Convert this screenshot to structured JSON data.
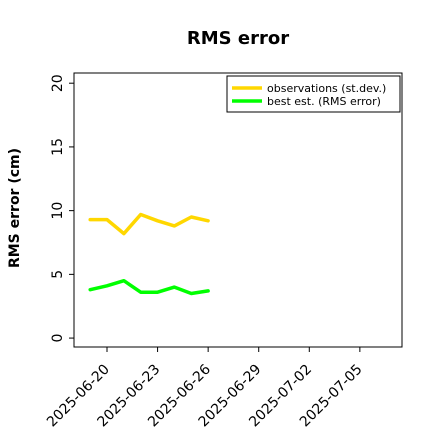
{
  "chart_data": {
    "type": "line",
    "title": "RMS error",
    "xlabel": "",
    "ylabel": "RMS error (cm)",
    "ylim": [
      -0.7,
      20.8
    ],
    "xlim": [
      "2025-06-18T01:00",
      "2025-07-07T12:00"
    ],
    "yticks": [
      0,
      5,
      10,
      15,
      20
    ],
    "xticks": [
      "2025-06-20",
      "2025-06-23",
      "2025-06-26",
      "2025-06-29",
      "2025-07-02",
      "2025-07-05"
    ],
    "xtick_colors": [
      "#000000",
      "#000000",
      "#228B22",
      "#000000",
      "#000000",
      "#000000"
    ],
    "legend_position": "top-right",
    "grid": false,
    "series": [
      {
        "name": "observations (st.dev.)",
        "color": "#FFD700",
        "x": [
          "2025-06-19",
          "2025-06-20",
          "2025-06-21",
          "2025-06-22",
          "2025-06-23",
          "2025-06-24",
          "2025-06-25",
          "2025-06-26"
        ],
        "values": [
          9.3,
          9.3,
          8.2,
          9.7,
          9.2,
          8.8,
          9.5,
          9.2
        ]
      },
      {
        "name": "best est. (RMS error)",
        "color": "#00FF00",
        "x": [
          "2025-06-19",
          "2025-06-20",
          "2025-06-21",
          "2025-06-22",
          "2025-06-23",
          "2025-06-24",
          "2025-06-25",
          "2025-06-26"
        ],
        "values": [
          3.8,
          4.1,
          4.5,
          3.6,
          3.6,
          4.0,
          3.5,
          3.7
        ]
      }
    ]
  }
}
